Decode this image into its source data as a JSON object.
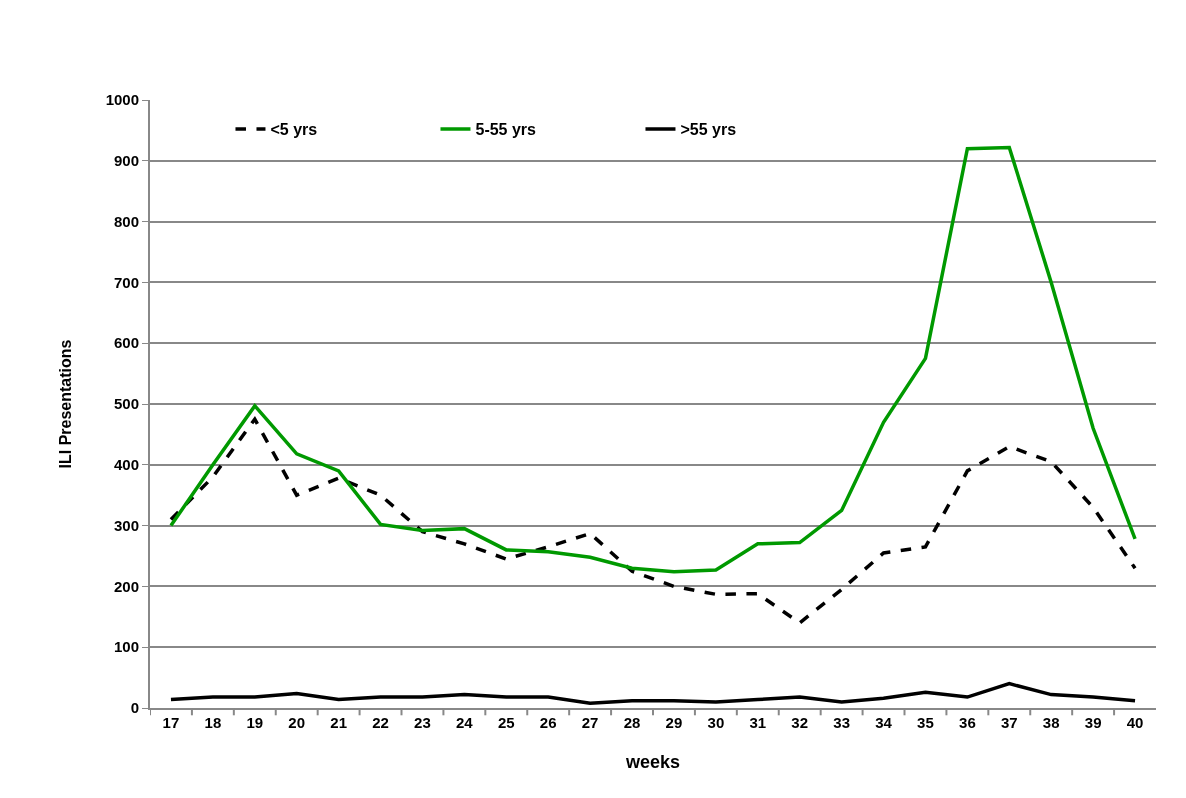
{
  "chart_data": {
    "type": "line",
    "xlabel": "weeks",
    "ylabel": "ILI Presentations",
    "categories": [
      "17",
      "18",
      "19",
      "20",
      "21",
      "22",
      "23",
      "24",
      "25",
      "26",
      "27",
      "28",
      "29",
      "30",
      "31",
      "32",
      "33",
      "34",
      "35",
      "36",
      "37",
      "38",
      "39",
      "40"
    ],
    "series": [
      {
        "name": "<5 yrs",
        "color": "#000000",
        "line_style": "dashed",
        "values": [
          310,
          380,
          475,
          350,
          378,
          350,
          290,
          270,
          245,
          265,
          287,
          225,
          200,
          187,
          188,
          140,
          195,
          255,
          265,
          390,
          430,
          405,
          330,
          230
        ]
      },
      {
        "name": "5-55 yrs",
        "color": "#009900",
        "line_style": "solid",
        "values": [
          300,
          400,
          497,
          418,
          390,
          302,
          292,
          295,
          260,
          257,
          248,
          230,
          224,
          227,
          270,
          272,
          325,
          470,
          575,
          920,
          922,
          700,
          460,
          278
        ]
      },
      {
        "name": ">55 yrs",
        "color": "#000000",
        "line_style": "solid",
        "values": [
          14,
          18,
          18,
          24,
          14,
          18,
          18,
          22,
          18,
          18,
          8,
          12,
          12,
          10,
          14,
          18,
          10,
          16,
          26,
          18,
          40,
          22,
          18,
          12
        ]
      }
    ],
    "ylim": [
      0,
      1000
    ],
    "yticks": [
      0,
      100,
      200,
      300,
      400,
      500,
      600,
      700,
      800,
      900,
      1000
    ],
    "grid": "y",
    "legend": "top left",
    "marker": "none"
  }
}
